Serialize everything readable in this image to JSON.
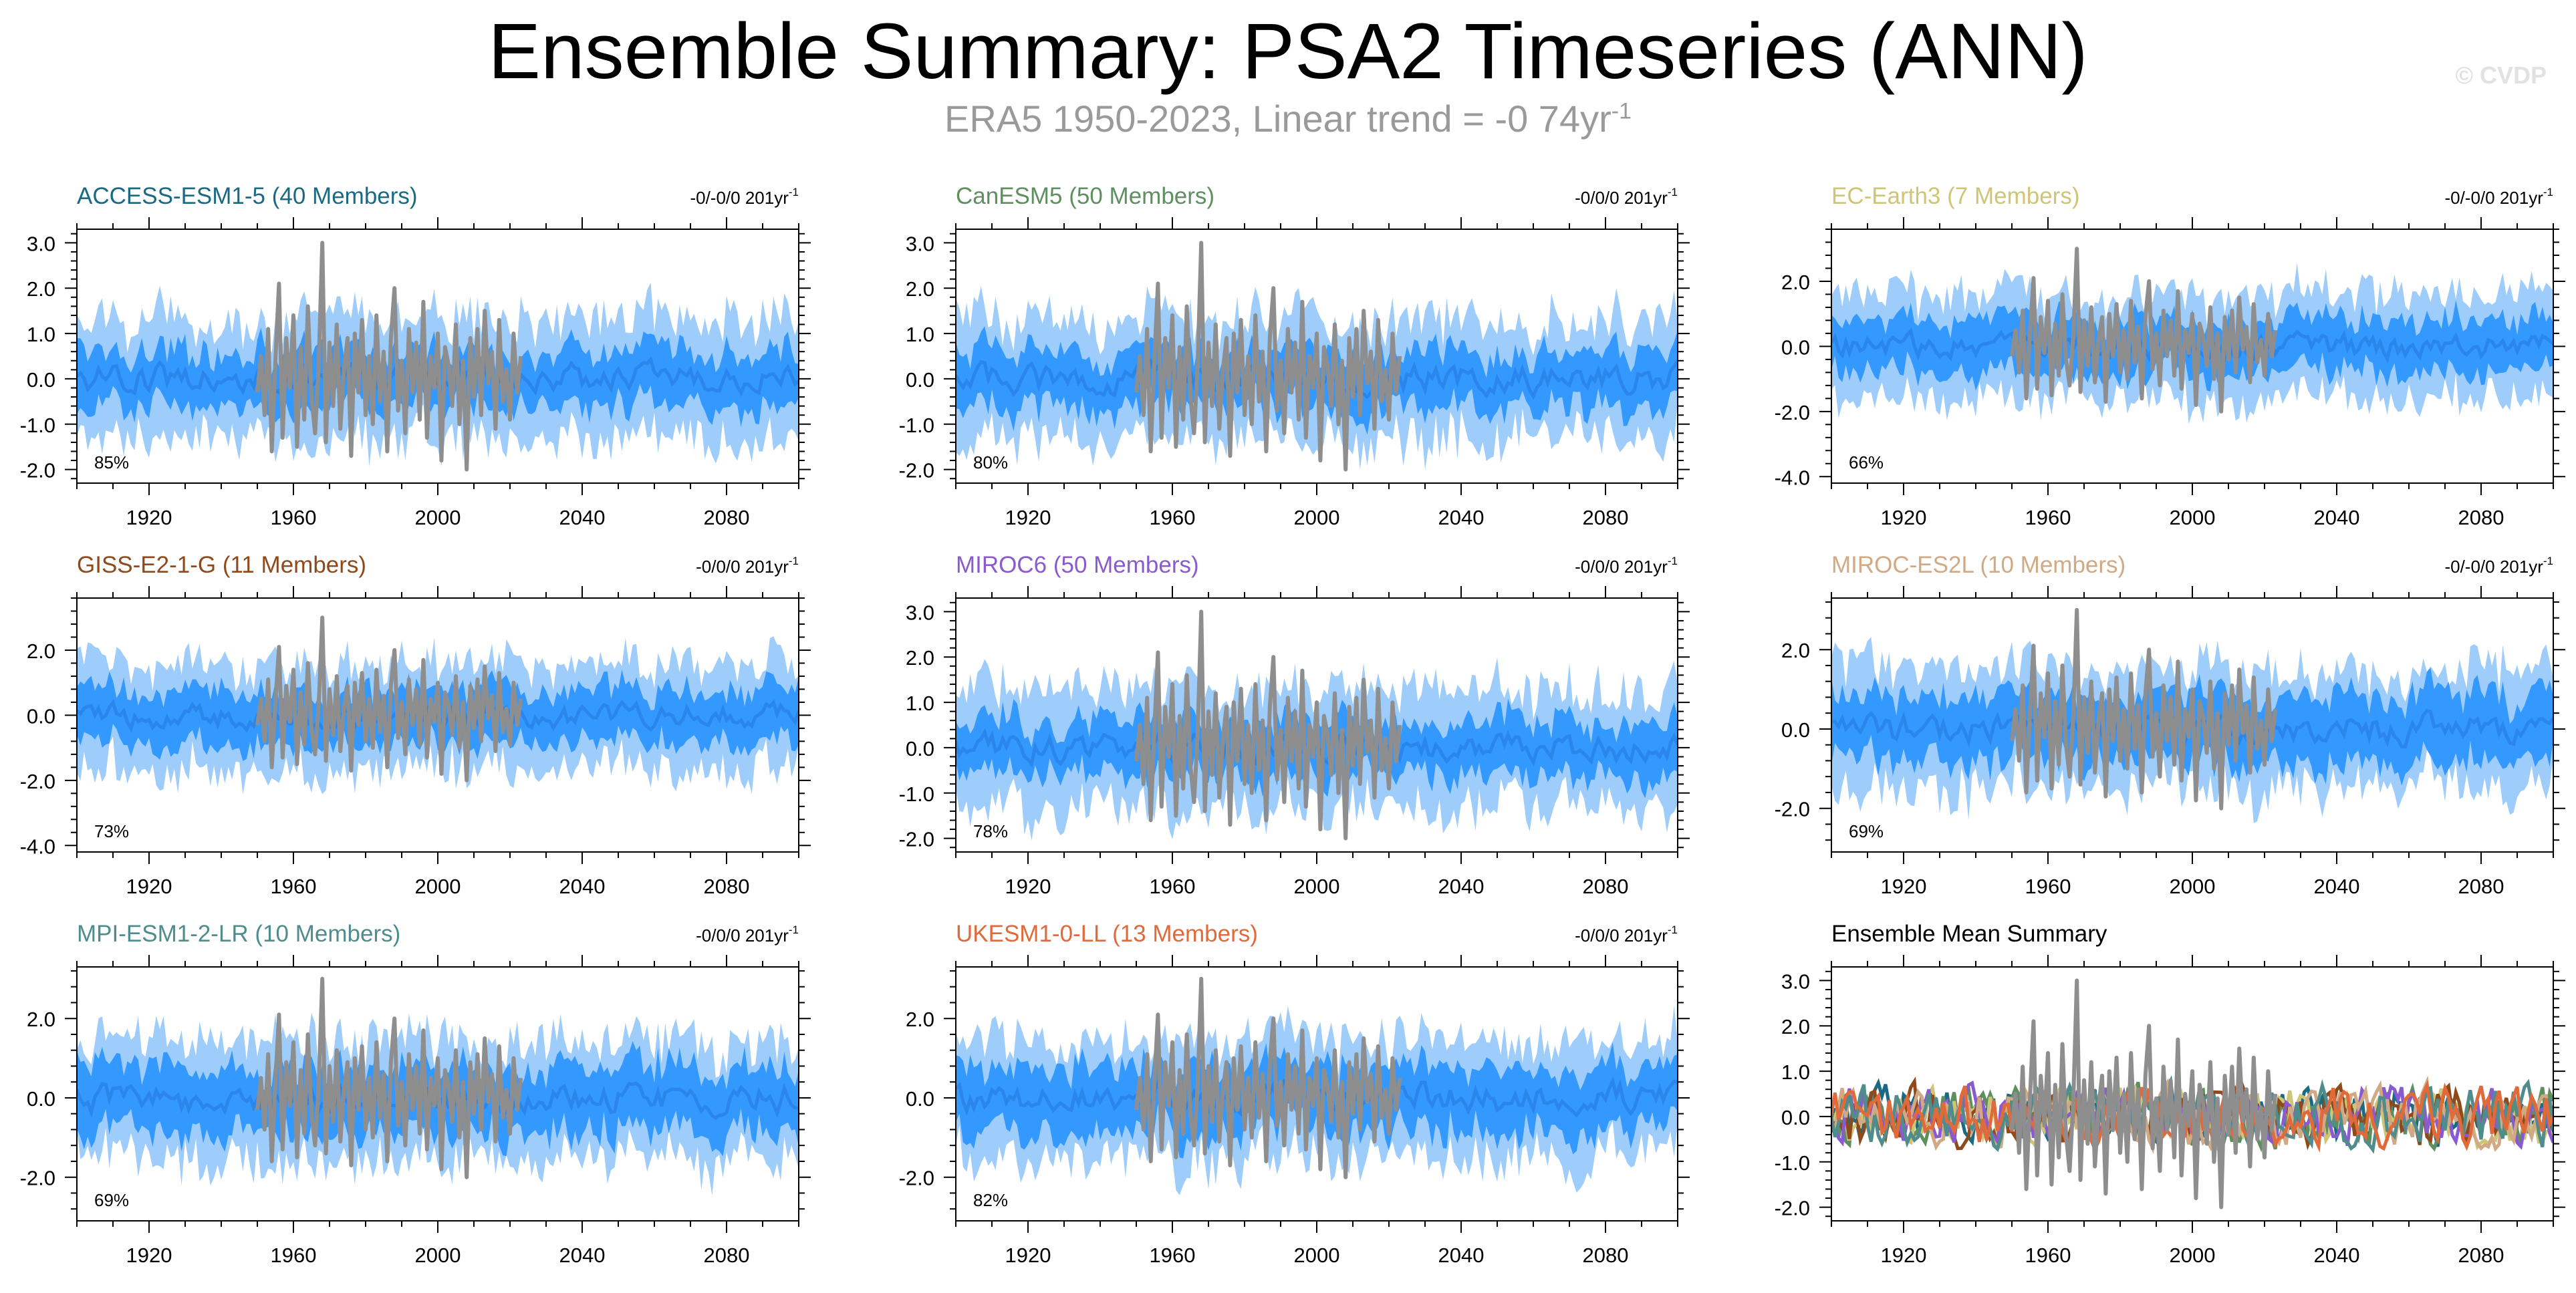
{
  "header": {
    "title": "Ensemble Summary: PSA2 Timeseries (ANN)",
    "subtitle_text": "ERA5 1950-2023, Linear trend = -0 74yr",
    "subtitle_sup": "-1",
    "watermark": "© CVDP"
  },
  "colors": {
    "inner_band": "#3399ff",
    "outer_band": "#9fcdfb",
    "ensemble_mean": "#2a86ea",
    "observed": "#8e8e8e",
    "axis": "#000000"
  },
  "chart_data": [
    {
      "type": "line",
      "title": "ACCESS-ESM1-5 (40 Members)",
      "title_color": "#1b6a83",
      "trend_label": "-0/-0/0 201yr",
      "trend_sup": "-1",
      "percent_label": "85%",
      "xlim": [
        1900,
        2100
      ],
      "ylim": [
        -2.3,
        3.3
      ],
      "yticks": [
        -2.0,
        -1.0,
        0.0,
        1.0,
        2.0,
        3.0
      ],
      "ytick_labels": [
        "-2.0",
        "-1.0",
        "0.0",
        "1.0",
        "2.0",
        "3.0"
      ],
      "xticks": [
        1920,
        1960,
        2000,
        2040,
        2080
      ],
      "xtick_labels": [
        "1920",
        "1960",
        "2000",
        "2040",
        "2080"
      ],
      "envelope": {
        "mean_amplitude": 0.25,
        "inner_halfwidth": 0.6,
        "outer_halfwidth": 1.3
      }
    },
    {
      "type": "line",
      "title": "CanESM5 (50 Members)",
      "title_color": "#5e8f5e",
      "trend_label": "-0/0/0 201yr",
      "trend_sup": "-1",
      "percent_label": "80%",
      "xlim": [
        1900,
        2100
      ],
      "ylim": [
        -2.3,
        3.3
      ],
      "yticks": [
        -2.0,
        -1.0,
        0.0,
        1.0,
        2.0,
        3.0
      ],
      "ytick_labels": [
        "-2.0",
        "-1.0",
        "0.0",
        "1.0",
        "2.0",
        "3.0"
      ],
      "xticks": [
        1920,
        1960,
        2000,
        2040,
        2080
      ],
      "xtick_labels": [
        "1920",
        "1960",
        "2000",
        "2040",
        "2080"
      ],
      "envelope": {
        "mean_amplitude": 0.25,
        "inner_halfwidth": 0.6,
        "outer_halfwidth": 1.3
      }
    },
    {
      "type": "line",
      "title": "EC-Earth3 (7 Members)",
      "title_color": "#cfc577",
      "trend_label": "-0/-0/0 201yr",
      "trend_sup": "-1",
      "percent_label": "66%",
      "xlim": [
        1900,
        2100
      ],
      "ylim": [
        -4.2,
        3.6
      ],
      "yticks": [
        -4.0,
        -2.0,
        0.0,
        2.0
      ],
      "ytick_labels": [
        "-4.0",
        "-2.0",
        "0.0",
        "2.0"
      ],
      "xticks": [
        1920,
        1960,
        2000,
        2040,
        2080
      ],
      "xtick_labels": [
        "1920",
        "1960",
        "2000",
        "2040",
        "2080"
      ],
      "envelope": {
        "mean_amplitude": 0.3,
        "inner_halfwidth": 0.8,
        "outer_halfwidth": 1.6
      }
    },
    {
      "type": "line",
      "title": "GISS-E2-1-G (11 Members)",
      "title_color": "#8f4a1c",
      "trend_label": "-0/0/0 201yr",
      "trend_sup": "-1",
      "percent_label": "73%",
      "xlim": [
        1900,
        2100
      ],
      "ylim": [
        -4.2,
        3.6
      ],
      "yticks": [
        -4.0,
        -2.0,
        0.0,
        2.0
      ],
      "ytick_labels": [
        "-4.0",
        "-2.0",
        "0.0",
        "2.0"
      ],
      "xticks": [
        1920,
        1960,
        2000,
        2040,
        2080
      ],
      "xtick_labels": [
        "1920",
        "1960",
        "2000",
        "2040",
        "2080"
      ],
      "envelope": {
        "mean_amplitude": 0.3,
        "inner_halfwidth": 0.8,
        "outer_halfwidth": 1.6
      }
    },
    {
      "type": "line",
      "title": "MIROC6 (50 Members)",
      "title_color": "#8a5bd0",
      "trend_label": "-0/0/0 201yr",
      "trend_sup": "-1",
      "percent_label": "78%",
      "xlim": [
        1900,
        2100
      ],
      "ylim": [
        -2.3,
        3.3
      ],
      "yticks": [
        -2.0,
        -1.0,
        0.0,
        1.0,
        2.0,
        3.0
      ],
      "ytick_labels": [
        "-2.0",
        "-1.0",
        "0.0",
        "1.0",
        "2.0",
        "3.0"
      ],
      "xticks": [
        1920,
        1960,
        2000,
        2040,
        2080
      ],
      "xtick_labels": [
        "1920",
        "1960",
        "2000",
        "2040",
        "2080"
      ],
      "envelope": {
        "mean_amplitude": 0.25,
        "inner_halfwidth": 0.6,
        "outer_halfwidth": 1.3
      }
    },
    {
      "type": "line",
      "title": "MIROC-ES2L (10 Members)",
      "title_color": "#d1a985",
      "trend_label": "-0/-0/0 201yr",
      "trend_sup": "-1",
      "percent_label": "69%",
      "xlim": [
        1900,
        2100
      ],
      "ylim": [
        -3.1,
        3.3
      ],
      "yticks": [
        -2.0,
        0.0,
        2.0
      ],
      "ytick_labels": [
        "-2.0",
        "0.0",
        "2.0"
      ],
      "xticks": [
        1920,
        1960,
        2000,
        2040,
        2080
      ],
      "xtick_labels": [
        "1920",
        "1960",
        "2000",
        "2040",
        "2080"
      ],
      "envelope": {
        "mean_amplitude": 0.3,
        "inner_halfwidth": 0.8,
        "outer_halfwidth": 1.5
      }
    },
    {
      "type": "line",
      "title": "MPI-ESM1-2-LR (10 Members)",
      "title_color": "#4f8d8d",
      "trend_label": "-0/0/0 201yr",
      "trend_sup": "-1",
      "percent_label": "69%",
      "xlim": [
        1900,
        2100
      ],
      "ylim": [
        -3.1,
        3.3
      ],
      "yticks": [
        -2.0,
        0.0,
        2.0
      ],
      "ytick_labels": [
        "-2.0",
        "0.0",
        "2.0"
      ],
      "xticks": [
        1920,
        1960,
        2000,
        2040,
        2080
      ],
      "xtick_labels": [
        "1920",
        "1960",
        "2000",
        "2040",
        "2080"
      ],
      "envelope": {
        "mean_amplitude": 0.3,
        "inner_halfwidth": 0.8,
        "outer_halfwidth": 1.5
      }
    },
    {
      "type": "line",
      "title": "UKESM1-0-LL (13 Members)",
      "title_color": "#e06a3a",
      "trend_label": "-0/0/0 201yr",
      "trend_sup": "-1",
      "percent_label": "82%",
      "xlim": [
        1900,
        2100
      ],
      "ylim": [
        -3.1,
        3.3
      ],
      "yticks": [
        -2.0,
        0.0,
        2.0
      ],
      "ytick_labels": [
        "-2.0",
        "0.0",
        "2.0"
      ],
      "xticks": [
        1920,
        1960,
        2000,
        2040,
        2080
      ],
      "xtick_labels": [
        "1920",
        "1960",
        "2000",
        "2040",
        "2080"
      ],
      "envelope": {
        "mean_amplitude": 0.3,
        "inner_halfwidth": 0.8,
        "outer_halfwidth": 1.5
      }
    },
    {
      "type": "line",
      "title": "Ensemble Mean Summary",
      "title_color": "#000000",
      "trend_label": "",
      "trend_sup": "",
      "percent_label": "",
      "xlim": [
        1900,
        2100
      ],
      "ylim": [
        -2.3,
        3.3
      ],
      "yticks": [
        -2.0,
        -1.0,
        0.0,
        1.0,
        2.0,
        3.0
      ],
      "ytick_labels": [
        "-2.0",
        "-1.0",
        "0.0",
        "1.0",
        "2.0",
        "3.0"
      ],
      "xticks": [
        1920,
        1960,
        2000,
        2040,
        2080
      ],
      "xtick_labels": [
        "1920",
        "1960",
        "2000",
        "2040",
        "2080"
      ],
      "summary_series_colors": [
        "#1b6a83",
        "#5e8f5e",
        "#cfc577",
        "#8f4a1c",
        "#8a5bd0",
        "#d1a985",
        "#4f8d8d",
        "#e06a3a"
      ],
      "summary_amplitude": 0.45
    }
  ],
  "observed_series": {
    "x_start": 1950,
    "y": [
      -0.3,
      0.5,
      -0.8,
      1.1,
      -1.6,
      0.4,
      2.1,
      -1.3,
      0.9,
      -0.2,
      1.4,
      -1.5,
      0.7,
      -0.9,
      1.6,
      -0.4,
      -1.2,
      0.3,
      3.0,
      -1.4,
      0.8,
      -0.6,
      1.2,
      -1.1,
      0.2,
      0.9,
      -1.7,
      1.0,
      -0.3,
      1.3,
      -0.8,
      0.5,
      -1.0,
      1.4,
      -0.5,
      0.6,
      -1.6,
      0.9,
      2.0,
      -0.7,
      0.4,
      -1.2,
      1.1,
      -0.3,
      0.8,
      -0.9,
      1.7,
      -1.3,
      0.5,
      -0.2,
      1.0,
      -1.8,
      0.7,
      0.3,
      -0.6,
      1.2,
      -1.0,
      0.4,
      -2.0,
      0.9,
      -0.4,
      1.1,
      -0.8,
      1.5,
      -0.1,
      0.6,
      -1.1,
      1.3,
      -0.5,
      0.2,
      -0.9,
      1.0,
      -0.3,
      0.5
    ]
  }
}
